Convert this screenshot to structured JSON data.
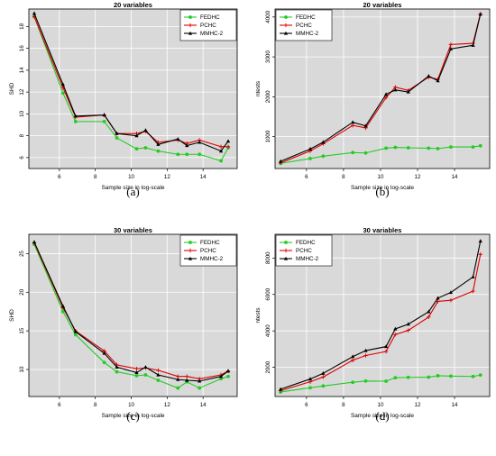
{
  "chart_data": [
    {
      "type": "line",
      "panel": "(a)",
      "title": "20 variables",
      "xlabel": "Sample size in log-scale",
      "ylabel": "SHD",
      "xlim": [
        4.3,
        15.9
      ],
      "ylim": [
        5,
        19.6
      ],
      "xticks": [
        6,
        8,
        10,
        12,
        14
      ],
      "yticks": [
        6,
        8,
        10,
        12,
        14,
        16,
        18
      ],
      "legend_position": "top-right",
      "background": "#d9d9d9",
      "grid": true,
      "x": [
        4.6,
        6.2,
        6.9,
        8.5,
        9.2,
        10.3,
        10.8,
        11.5,
        12.6,
        13.1,
        13.8,
        15.0,
        15.4
      ],
      "series": [
        {
          "name": "FEDHC",
          "color": "#22cc22",
          "marker": "circle",
          "values": [
            18.9,
            11.9,
            9.3,
            9.3,
            7.8,
            6.8,
            6.9,
            6.6,
            6.3,
            6.3,
            6.3,
            5.7,
            6.9
          ]
        },
        {
          "name": "PCHC",
          "color": "#dd0000",
          "marker": "plus",
          "values": [
            18.9,
            12.4,
            9.7,
            9.9,
            8.2,
            8.2,
            8.4,
            7.4,
            7.6,
            7.3,
            7.6,
            7.0,
            7.0
          ]
        },
        {
          "name": "MMHC-2",
          "color": "#000000",
          "marker": "triangle",
          "values": [
            19.2,
            12.7,
            9.8,
            9.9,
            8.2,
            8.0,
            8.5,
            7.2,
            7.7,
            7.1,
            7.4,
            6.6,
            7.5
          ]
        }
      ]
    },
    {
      "type": "line",
      "panel": "(b)",
      "title": "20 variables",
      "xlabel": "Sample size in log-scale",
      "ylabel": "ntests",
      "xlim": [
        4.3,
        15.9
      ],
      "ylim": [
        200,
        4200
      ],
      "xticks": [
        6,
        8,
        10,
        12,
        14
      ],
      "yticks": [
        1000,
        2000,
        3000,
        4000
      ],
      "legend_position": "top-left",
      "background": "#d9d9d9",
      "grid": true,
      "x": [
        4.6,
        6.2,
        6.9,
        8.5,
        9.2,
        10.3,
        10.8,
        11.5,
        12.6,
        13.1,
        13.8,
        15.0,
        15.4
      ],
      "series": [
        {
          "name": "FEDHC",
          "color": "#22cc22",
          "marker": "circle",
          "values": [
            330,
            450,
            510,
            600,
            590,
            710,
            730,
            720,
            710,
            700,
            740,
            740,
            770
          ]
        },
        {
          "name": "PCHC",
          "color": "#dd0000",
          "marker": "plus",
          "values": [
            340,
            640,
            820,
            1280,
            1220,
            1980,
            2240,
            2160,
            2490,
            2440,
            3310,
            3340,
            4080
          ]
        },
        {
          "name": "MMHC-2",
          "color": "#000000",
          "marker": "triangle",
          "values": [
            380,
            690,
            860,
            1360,
            1270,
            2060,
            2170,
            2120,
            2520,
            2400,
            3200,
            3290,
            4070
          ]
        }
      ]
    },
    {
      "type": "line",
      "panel": "(c)",
      "title": "30 variables",
      "xlabel": "Sample size in log-scale",
      "ylabel": "SHD",
      "xlim": [
        4.3,
        15.9
      ],
      "ylim": [
        6.5,
        27.5
      ],
      "xticks": [
        6,
        8,
        10,
        12,
        14
      ],
      "yticks": [
        10,
        15,
        20,
        25
      ],
      "legend_position": "top-right",
      "background": "#d9d9d9",
      "grid": true,
      "x": [
        4.6,
        6.2,
        6.9,
        8.5,
        9.2,
        10.3,
        10.8,
        11.5,
        12.6,
        13.1,
        13.8,
        15.0,
        15.4
      ],
      "series": [
        {
          "name": "FEDHC",
          "color": "#22cc22",
          "marker": "circle",
          "values": [
            26.2,
            17.5,
            14.5,
            10.9,
            9.7,
            9.2,
            9.3,
            8.6,
            7.6,
            8.4,
            7.6,
            8.8,
            9.1
          ]
        },
        {
          "name": "PCHC",
          "color": "#dd0000",
          "marker": "plus",
          "values": [
            26.4,
            18.0,
            15.0,
            12.4,
            10.6,
            10.1,
            10.2,
            9.9,
            9.1,
            9.1,
            8.8,
            9.3,
            9.8
          ]
        },
        {
          "name": "MMHC-2",
          "color": "#000000",
          "marker": "triangle",
          "values": [
            26.5,
            18.2,
            14.9,
            12.1,
            10.3,
            9.6,
            10.3,
            9.3,
            8.7,
            8.6,
            8.5,
            9.1,
            9.8
          ]
        }
      ]
    },
    {
      "type": "line",
      "panel": "(d)",
      "title": "30 variables",
      "xlabel": "Sample size in log-scale",
      "ylabel": "ntests",
      "xlim": [
        4.3,
        15.9
      ],
      "ylim": [
        400,
        9300
      ],
      "xticks": [
        6,
        8,
        10,
        12,
        14
      ],
      "yticks": [
        2000,
        4000,
        6000,
        8000
      ],
      "legend_position": "top-left",
      "background": "#d9d9d9",
      "grid": true,
      "x": [
        4.6,
        6.2,
        6.9,
        8.5,
        9.2,
        10.3,
        10.8,
        11.5,
        12.6,
        13.1,
        13.8,
        15.0,
        15.4
      ],
      "series": [
        {
          "name": "FEDHC",
          "color": "#22cc22",
          "marker": "circle",
          "values": [
            650,
            880,
            980,
            1180,
            1250,
            1240,
            1430,
            1450,
            1460,
            1540,
            1520,
            1500,
            1580
          ]
        },
        {
          "name": "PCHC",
          "color": "#dd0000",
          "marker": "plus",
          "values": [
            720,
            1210,
            1470,
            2390,
            2650,
            2870,
            3800,
            4030,
            4760,
            5620,
            5680,
            6180,
            8200
          ]
        },
        {
          "name": "MMHC-2",
          "color": "#000000",
          "marker": "triangle",
          "values": [
            800,
            1360,
            1670,
            2590,
            2920,
            3140,
            4110,
            4370,
            5050,
            5800,
            6110,
            6960,
            8930
          ]
        }
      ]
    }
  ]
}
